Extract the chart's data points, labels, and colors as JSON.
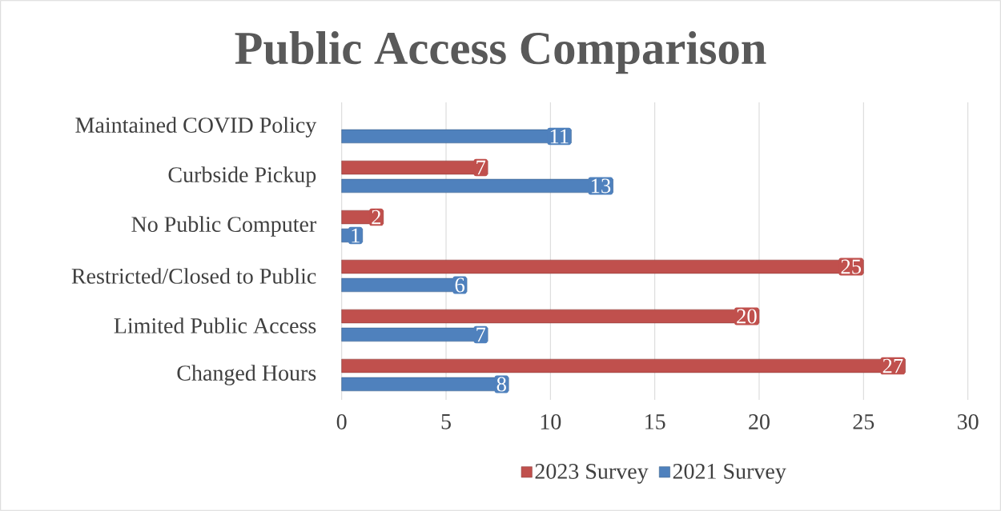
{
  "chart_data": {
    "type": "bar",
    "orientation": "horizontal",
    "title": "Public Access Comparison",
    "categories": [
      "Maintained COVID Policy",
      "Curbside Pickup",
      "No Public Computer",
      "Restricted/Closed to Public",
      "Limited Public Access",
      "Changed Hours"
    ],
    "series": [
      {
        "name": "2023 Survey",
        "color": "#c0504d",
        "values": [
          null,
          7,
          2,
          25,
          20,
          27
        ]
      },
      {
        "name": "2021 Survey",
        "color": "#4f81bd",
        "values": [
          11,
          13,
          1,
          6,
          7,
          8
        ]
      }
    ],
    "xlim": [
      0,
      30
    ],
    "xticks": [
      0,
      5,
      10,
      15,
      20,
      25,
      30
    ],
    "grid": "x",
    "legend": "bottom",
    "data_labels": true
  }
}
